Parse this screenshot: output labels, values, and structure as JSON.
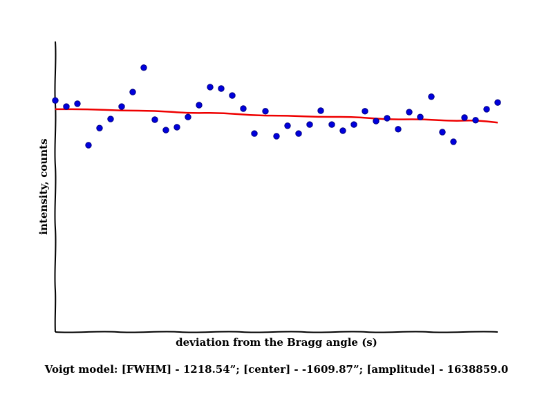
{
  "chart_data": {
    "type": "scatter",
    "xlabel": "deviation from the Bragg angle (s)",
    "ylabel": "intensity, counts",
    "caption": "Voigt model:   [FWHM] - 1218.54”; [center] - -1609.87”; [amplitude] - 1638859.0",
    "xlim": [
      0,
      40
    ],
    "ylim": [
      0,
      1
    ],
    "grid": false,
    "legend": "none",
    "ticks": "none",
    "series": [
      {
        "kind": "scatter",
        "color": "#0000dd",
        "edge_color": "#000080",
        "x": [
          0,
          1,
          2,
          3,
          4,
          5,
          6,
          7,
          8,
          9,
          10,
          11,
          12,
          13,
          14,
          15,
          16,
          17,
          18,
          19,
          20,
          21,
          22,
          23,
          24,
          25,
          26,
          27,
          28,
          29,
          30,
          31,
          32,
          33,
          34,
          35,
          36,
          37,
          38,
          39,
          40
        ],
        "y": [
          0.797,
          0.776,
          0.786,
          0.643,
          0.702,
          0.733,
          0.776,
          0.826,
          0.91,
          0.731,
          0.695,
          0.705,
          0.74,
          0.781,
          0.843,
          0.838,
          0.814,
          0.769,
          0.683,
          0.76,
          0.674,
          0.71,
          0.683,
          0.714,
          0.762,
          0.714,
          0.693,
          0.714,
          0.76,
          0.726,
          0.736,
          0.698,
          0.757,
          0.74,
          0.81,
          0.688,
          0.655,
          0.738,
          0.729,
          0.767,
          0.79
        ]
      },
      {
        "kind": "line",
        "color": "#ee0000",
        "x": [
          0,
          3,
          6,
          9,
          12,
          15,
          18,
          21,
          24,
          27,
          30,
          33,
          36,
          38,
          40
        ],
        "y": [
          0.767,
          0.767,
          0.762,
          0.762,
          0.753,
          0.755,
          0.745,
          0.745,
          0.74,
          0.741,
          0.731,
          0.733,
          0.726,
          0.729,
          0.721
        ]
      }
    ]
  }
}
